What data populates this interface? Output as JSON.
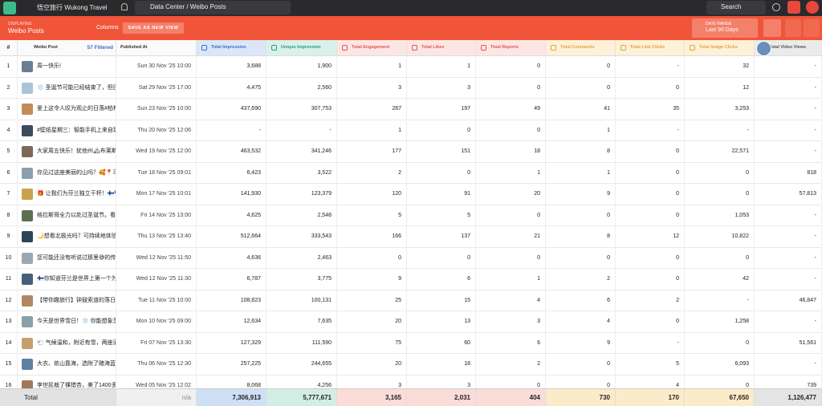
{
  "topbar": {
    "brand": "悟空旅行 Wukong Travel",
    "breadcrumb": "Data Center / Weibo Posts",
    "search": "Search"
  },
  "toolbar": {
    "displaying_label": "DISPLAYING",
    "displaying_value": "Weibo Posts",
    "columns": "Columns",
    "save_view": "SAVE AS NEW VIEW",
    "date_range_label": "DATE RANGE",
    "date_range_value": "Last 90 Days"
  },
  "table": {
    "headers": [
      "#",
      "Weibo Post",
      "Published At",
      "Total Impression",
      "Unique Impression",
      "Total Engagement",
      "Total Likes",
      "Total Reports",
      "Total Comments",
      "Total Link Clicks",
      "Total Image Clicks",
      "Total Video Views"
    ],
    "filtered": "57 Filtered",
    "rows": [
      [
        "1",
        "周一快乐!",
        "Sun 30 Nov '25 10:00",
        "3,688",
        "1,900",
        "1",
        "1",
        "0",
        "0",
        "-",
        "32",
        "-"
      ],
      [
        "2",
        "❄️ 圣诞节可能已经结束了，但巴...",
        "Sat 29 Nov '25 17:00",
        "4,475",
        "2,560",
        "3",
        "3",
        "0",
        "0",
        "0",
        "12",
        "-"
      ],
      [
        "3",
        "爱上这令人叹为观止的日落#柏林...",
        "Sun 23 Nov '25 10:00",
        "437,690",
        "307,753",
        "287",
        "197",
        "49",
        "41",
        "35",
        "3,253",
        "-"
      ],
      [
        "4",
        "#壁纸星期三：智能手机上来自瑞...",
        "Thu 20 Nov '25 12:06",
        "-",
        "-",
        "1",
        "0",
        "0",
        "1",
        "-",
        "-",
        "-"
      ],
      [
        "5",
        "大家周五快乐！犹他州🏔布莱斯...",
        "Wed 19 Nov '25 12:00",
        "463,532",
        "341,246",
        "177",
        "151",
        "18",
        "8",
        "0",
        "22,571",
        "-"
      ],
      [
        "6",
        "你见过这座美丽的山吗？🥰📍马...",
        "Tue 18 Nov '25 09:01",
        "6,423",
        "3,522",
        "2",
        "0",
        "1",
        "1",
        "0",
        "0",
        "818"
      ],
      [
        "7",
        "🎁 让我们为芬兰独立干杯！🇫🇮💙...",
        "Mon 17 Nov '25 10:01",
        "141,930",
        "123,379",
        "120",
        "91",
        "20",
        "9",
        "0",
        "0",
        "57,813"
      ],
      [
        "8",
        "格拉斯哥全力以赴过圣诞节。看起...",
        "Fri 14 Nov '25 13:00",
        "4,625",
        "2,548",
        "5",
        "5",
        "0",
        "0",
        "0",
        "1,053",
        "-"
      ],
      [
        "9",
        "🌙想看北极光吗？可持续地体验...",
        "Thu 13 Nov '25 13:40",
        "512,664",
        "333,543",
        "166",
        "137",
        "21",
        "8",
        "12",
        "10,822",
        "-"
      ],
      [
        "10",
        "您可能还没有听说过那里😅的传...",
        "Wed 12 Nov '25 11:50",
        "4,636",
        "2,463",
        "0",
        "0",
        "0",
        "0",
        "0",
        "0",
        "-"
      ],
      [
        "11",
        "🇫🇮你知道芬兰是世界上第一个为...",
        "Wed 12 Nov '25 11:30",
        "6,787",
        "3,775",
        "9",
        "6",
        "1",
        "2",
        "0",
        "42",
        "-"
      ],
      [
        "12",
        "【带你趣旅行】钟鼓索道的落日、夏大门...",
        "Tue 11 Nov '25 10:00",
        "108,823",
        "100,131",
        "25",
        "15",
        "4",
        "6",
        "2",
        "-",
        "46,847"
      ],
      [
        "13",
        "今天是世界雪日！❄️ 你能想象享...",
        "Mon 10 Nov '25 09:00",
        "12,634",
        "7,635",
        "20",
        "13",
        "3",
        "4",
        "0",
        "1,258",
        "-"
      ],
      [
        "14",
        "🐑 气候温和，附近有雪，两座酒...",
        "Fri 07 Nov '25 13:30",
        "127,329",
        "111,590",
        "75",
        "60",
        "6",
        "9",
        "-",
        "0",
        "51,561"
      ],
      [
        "15",
        "大衣、依山靠海，选附了赌海蓝天...",
        "Thu 06 Nov '25 12:30",
        "257,225",
        "244,655",
        "20",
        "18",
        "2",
        "0",
        "5",
        "6,093",
        "-"
      ],
      [
        "16",
        "李世民栽了棵猎杏，美了1400多年",
        "Wed 05 Nov '25 12:02",
        "8,068",
        "4,256",
        "3",
        "3",
        "0",
        "0",
        "4",
        "0",
        "739"
      ]
    ],
    "footer": [
      "Total",
      "n/a",
      "7,306,913",
      "5,777,671",
      "3,165",
      "2,031",
      "404",
      "730",
      "170",
      "67,650",
      "1,126,477"
    ]
  }
}
